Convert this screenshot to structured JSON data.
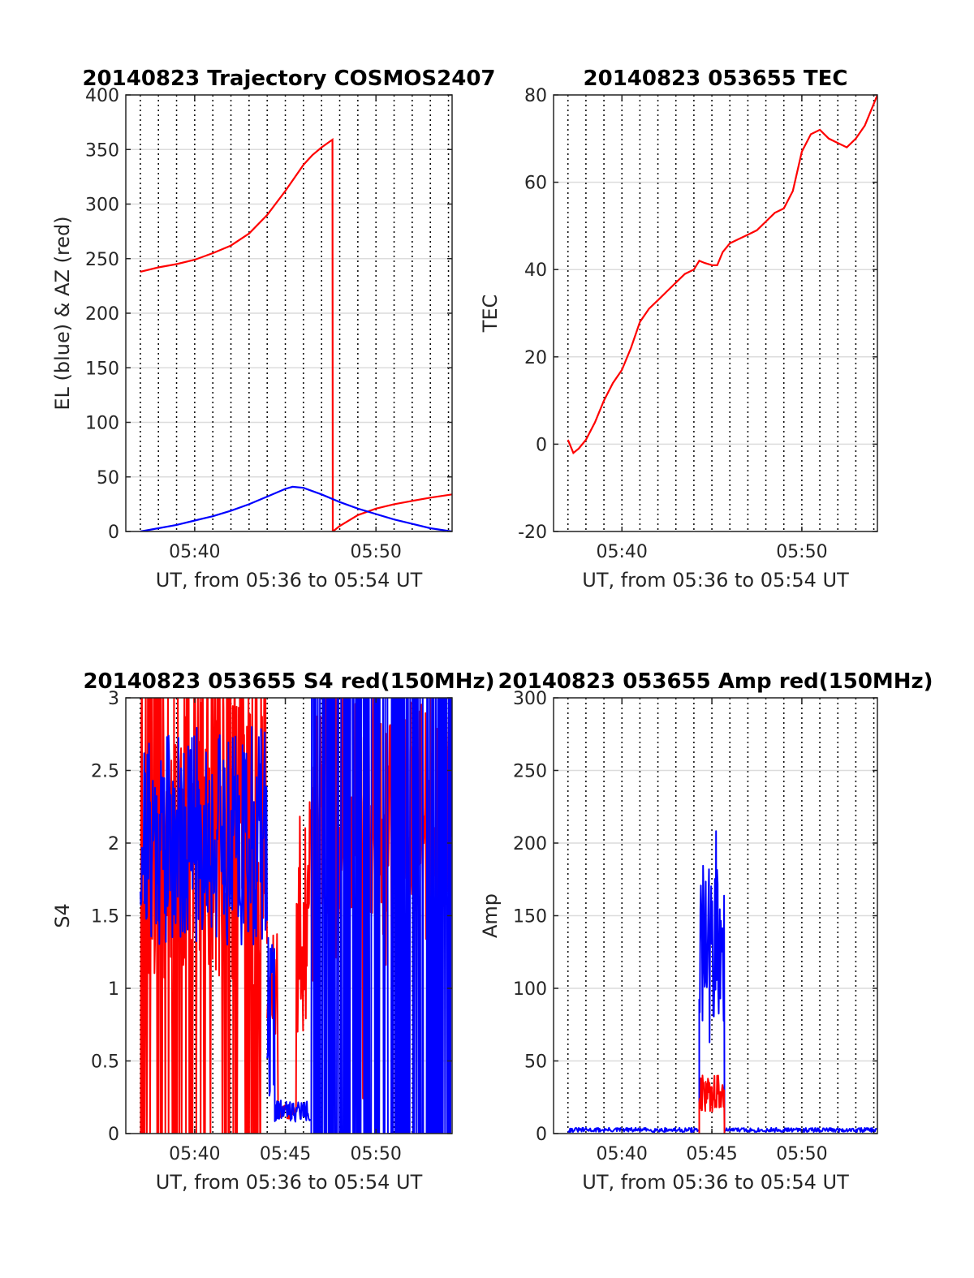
{
  "figure": {
    "colors": {
      "red": "#ff0000",
      "blue": "#0000ff",
      "grid_major": "#dcdcdc",
      "grid_minor": "#000000",
      "axis": "#262626"
    }
  },
  "chart_data": [
    {
      "type": "line",
      "title": "20140823 Trajectory COSMOS2407",
      "xlabel": "UT, from 05:36 to 05:54 UT",
      "ylabel": "EL (blue) & AZ (red)",
      "xlim_min": [
        36.2,
        54.2
      ],
      "ylim": [
        0,
        400
      ],
      "xticks": [
        {
          "v": 40,
          "label": "05:40"
        },
        {
          "v": 50,
          "label": "05:50"
        }
      ],
      "yticks": [
        0,
        50,
        100,
        150,
        200,
        250,
        300,
        350,
        400
      ],
      "grid": true,
      "series": [
        {
          "color": "red",
          "x": [
            37.0,
            38.0,
            39.0,
            40.0,
            41.0,
            42.0,
            43.0,
            44.0,
            45.0,
            46.0,
            46.5,
            47.0,
            47.6,
            47.62,
            48.0,
            49.0,
            50.0,
            51.0,
            52.0,
            53.0,
            54.2
          ],
          "y": [
            238,
            242,
            245,
            249,
            255,
            262,
            273,
            290,
            312,
            336,
            345,
            352,
            359,
            0,
            5,
            15,
            21,
            25,
            28,
            31,
            34
          ]
        },
        {
          "color": "blue",
          "x": [
            37.0,
            38.0,
            39.0,
            40.0,
            41.0,
            42.0,
            43.0,
            44.0,
            45.0,
            45.4,
            46.0,
            47.0,
            48.0,
            49.0,
            50.0,
            51.0,
            52.0,
            53.0,
            54.2
          ],
          "y": [
            0,
            3,
            6,
            10,
            14,
            19,
            25,
            32,
            39,
            41,
            40,
            34,
            27,
            21,
            16,
            11,
            7,
            3,
            0
          ]
        }
      ]
    },
    {
      "type": "line",
      "title": "20140823 053655 TEC",
      "xlabel": "UT, from 05:36 to 05:54 UT",
      "ylabel": "TEC",
      "xlim_min": [
        36.2,
        54.2
      ],
      "ylim": [
        -20,
        80
      ],
      "xticks": [
        {
          "v": 40,
          "label": "05:40"
        },
        {
          "v": 50,
          "label": "05:50"
        }
      ],
      "yticks": [
        -20,
        0,
        20,
        40,
        60,
        80
      ],
      "grid": true,
      "series": [
        {
          "color": "red",
          "x": [
            37.0,
            37.3,
            37.6,
            38.0,
            38.5,
            39.0,
            39.5,
            40.0,
            40.5,
            41.0,
            41.5,
            42.0,
            42.5,
            43.0,
            43.5,
            44.0,
            44.3,
            44.6,
            45.0,
            45.3,
            45.6,
            46.0,
            46.5,
            47.0,
            47.5,
            48.0,
            48.5,
            49.0,
            49.5,
            50.0,
            50.5,
            51.0,
            51.5,
            52.0,
            52.5,
            53.0,
            53.5,
            54.2
          ],
          "y": [
            1,
            -2,
            -1,
            1,
            5,
            10,
            14,
            17,
            22,
            28,
            31,
            33,
            35,
            37,
            39,
            40,
            42,
            41.5,
            41,
            41,
            44,
            46,
            47,
            48,
            49,
            51,
            53,
            54,
            58,
            67,
            71,
            72,
            70,
            69,
            68,
            70,
            73,
            80
          ]
        }
      ]
    },
    {
      "type": "line",
      "title": "20140823 053655 S4 red(150MHz)",
      "xlabel": "UT, from 05:36 to 05:54 UT",
      "ylabel": "S4",
      "xlim_min": [
        36.2,
        54.2
      ],
      "ylim": [
        0,
        3
      ],
      "xticks": [
        {
          "v": 40,
          "label": "05:40"
        },
        {
          "v": 45,
          "label": "05:45"
        },
        {
          "v": 50,
          "label": "05:50"
        }
      ],
      "yticks": [
        0,
        0.5,
        1,
        1.5,
        2,
        2.5,
        3
      ],
      "grid": true,
      "noise": [
        {
          "color": "red",
          "from": 37.0,
          "to": 44.0,
          "mode": "wild",
          "seed": 11
        },
        {
          "color": "red",
          "from": 44.0,
          "to": 46.4,
          "mode": "mixed",
          "seed": 12
        },
        {
          "color": "red",
          "from": 46.4,
          "to": 54.2,
          "mode": "sparse",
          "seed": 13
        },
        {
          "color": "blue",
          "from": 37.0,
          "to": 44.0,
          "mode": "band",
          "seed": 21
        },
        {
          "color": "blue",
          "from": 44.0,
          "to": 46.4,
          "mode": "low",
          "seed": 22
        },
        {
          "color": "blue",
          "from": 46.4,
          "to": 54.2,
          "mode": "full",
          "seed": 23
        }
      ]
    },
    {
      "type": "line",
      "title": "20140823 053655 Amp red(150MHz)",
      "xlabel": "UT, from 05:36 to 05:54 UT",
      "ylabel": "Amp",
      "xlim_min": [
        36.2,
        54.2
      ],
      "ylim": [
        0,
        300
      ],
      "xticks": [
        {
          "v": 40,
          "label": "05:40"
        },
        {
          "v": 45,
          "label": "05:45"
        },
        {
          "v": 50,
          "label": "05:50"
        }
      ],
      "yticks": [
        0,
        50,
        100,
        150,
        200,
        250,
        300
      ],
      "grid": true,
      "noise": [
        {
          "color": "blue",
          "from": 37.0,
          "to": 44.3,
          "mode": "flat",
          "seed": 31
        },
        {
          "color": "blue",
          "from": 44.3,
          "to": 45.7,
          "mode": "spike",
          "seed": 32
        },
        {
          "color": "blue",
          "from": 45.7,
          "to": 54.2,
          "mode": "flat",
          "seed": 33
        },
        {
          "color": "red",
          "from": 44.3,
          "to": 45.7,
          "mode": "redspike",
          "seed": 34
        }
      ]
    }
  ]
}
